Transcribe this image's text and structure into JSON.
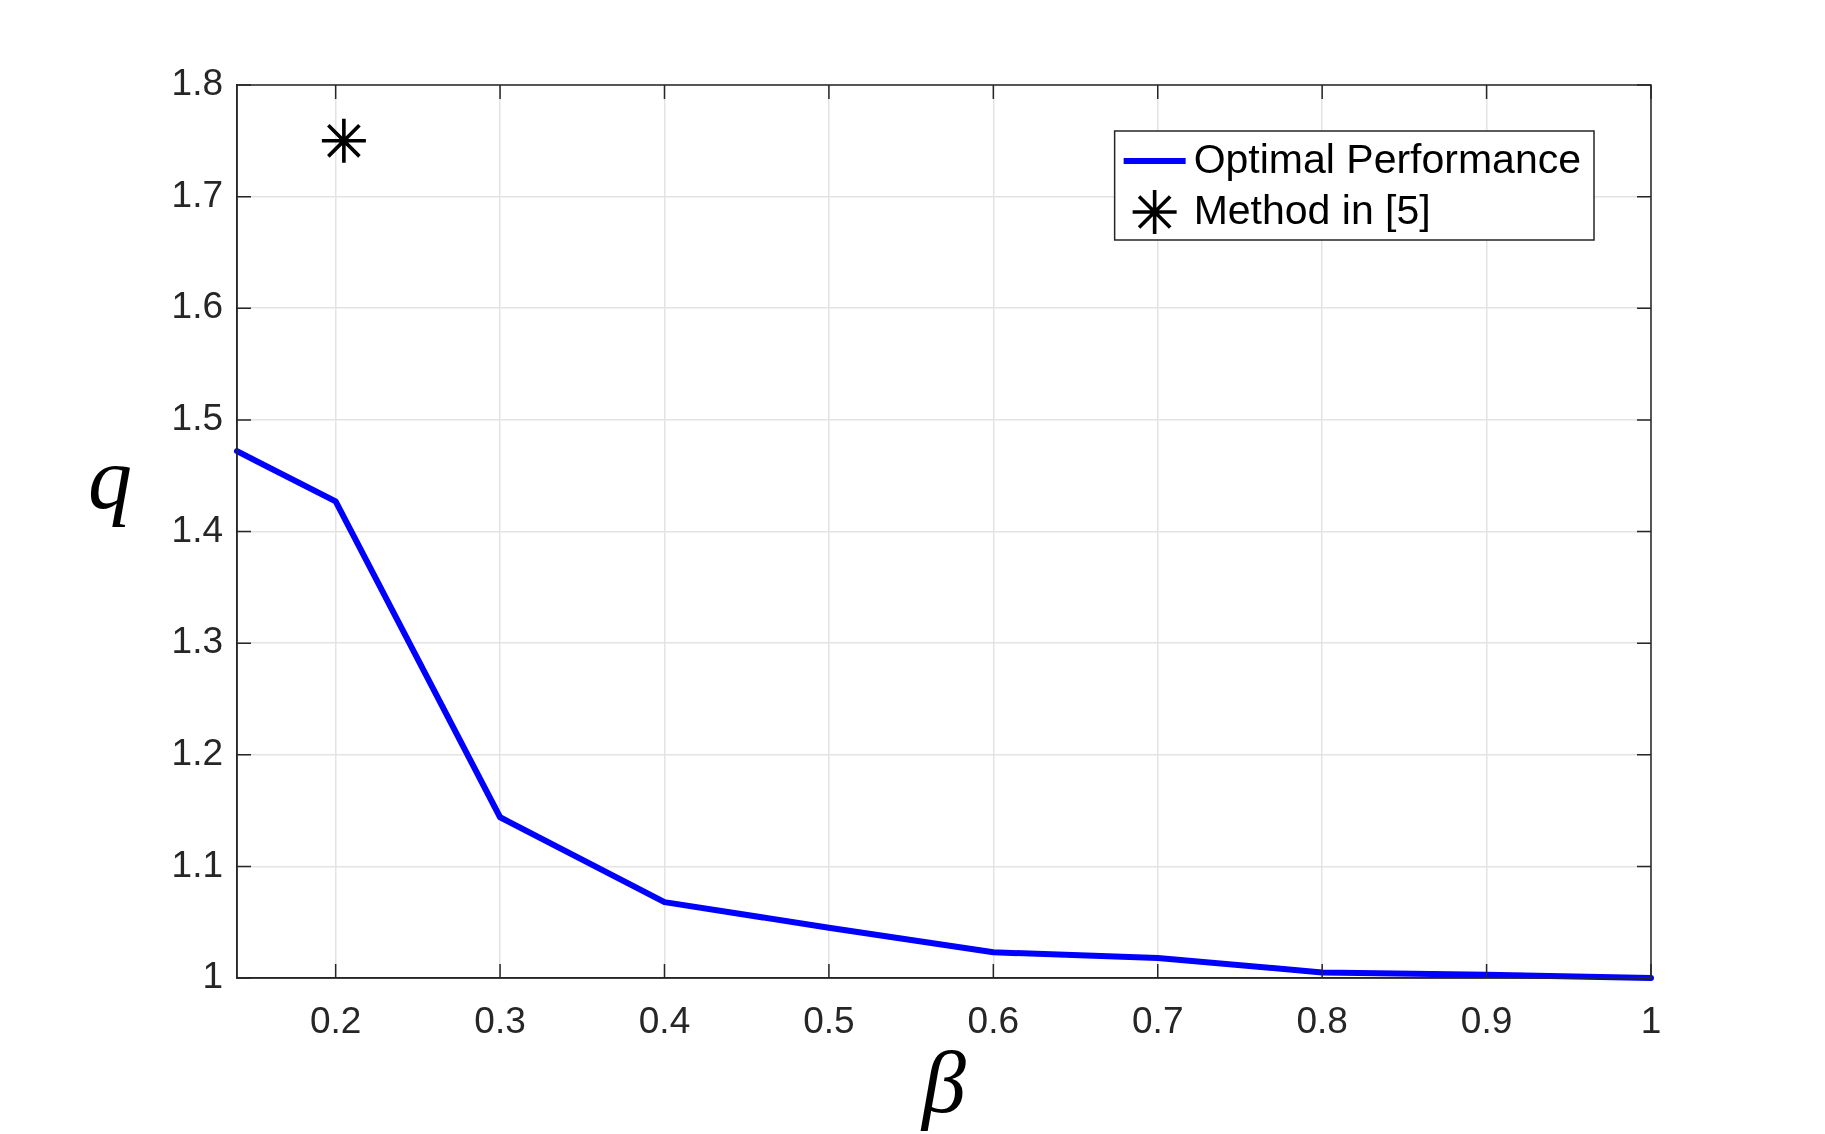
{
  "chart_data": {
    "type": "line",
    "xlabel": "β",
    "ylabel": "q",
    "xlim": [
      0.14,
      1
    ],
    "xticks": [
      0.2,
      0.3,
      0.4,
      0.5,
      0.6,
      0.7,
      0.8,
      0.9,
      1
    ],
    "ylim": [
      1,
      1.8
    ],
    "yticks": [
      1,
      1.1,
      1.2,
      1.3,
      1.4,
      1.5,
      1.6,
      1.7,
      1.8
    ],
    "grid": true,
    "legend": "top right",
    "series": [
      {
        "name": "Optimal Performance",
        "color": "#0000ff",
        "marker": "none",
        "line_style": "solid",
        "x": [
          0.14,
          0.2,
          0.3,
          0.4,
          0.5,
          0.6,
          0.7,
          0.8,
          0.9,
          1
        ],
        "values": [
          1.472,
          1.427,
          1.144,
          1.068,
          1.045,
          1.023,
          1.018,
          1.005,
          1.003,
          1.0
        ]
      },
      {
        "name": "Method in [5]",
        "type": "scatter",
        "color": "#000000",
        "marker": "star",
        "x": [
          0.205
        ],
        "values": [
          1.75
        ]
      }
    ]
  }
}
